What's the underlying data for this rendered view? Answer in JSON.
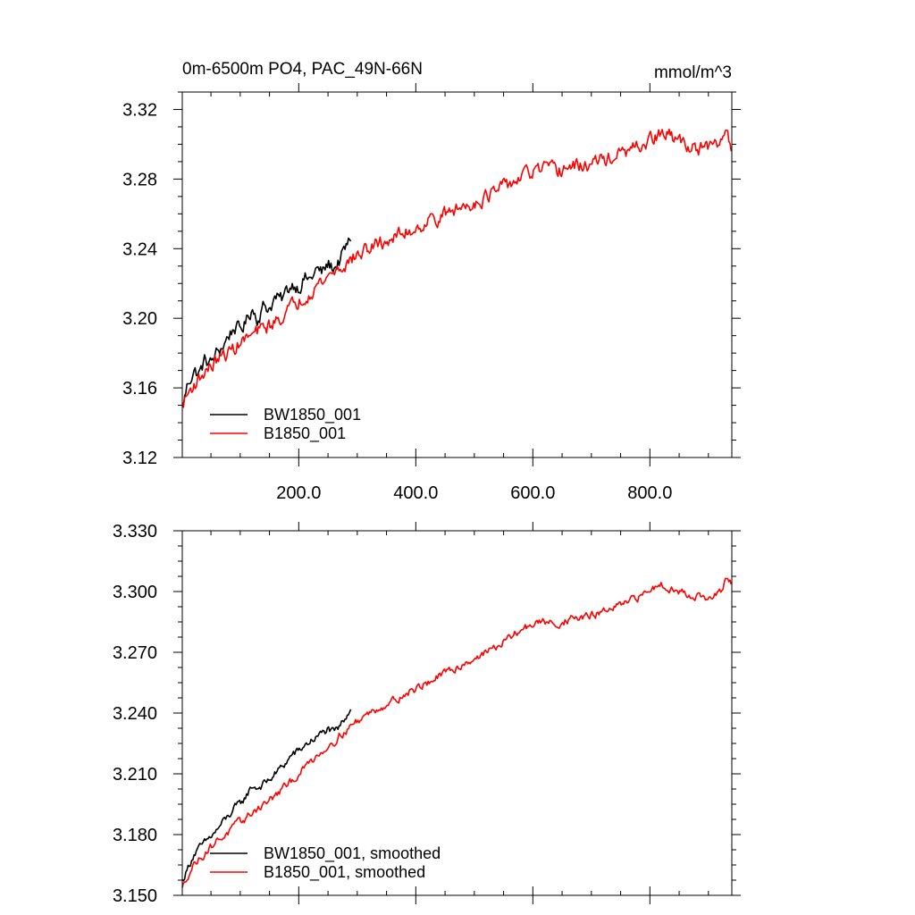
{
  "figure": {
    "title_left": "0m-6500m PO4, PAC_49N-66N",
    "title_right": "mmol/m^3"
  },
  "chart_data": [
    {
      "type": "line",
      "title": "0m-6500m PO4, PAC_49N-66N",
      "units": "mmol/m^3",
      "xlim": [
        1,
        940
      ],
      "ylim": [
        3.12,
        3.33
      ],
      "x_ticks": [
        200,
        400,
        600,
        800
      ],
      "x_tick_labels": [
        "200.0",
        "400.0",
        "600.0",
        "800.0"
      ],
      "y_ticks": [
        3.12,
        3.16,
        3.2,
        3.24,
        3.28,
        3.32
      ],
      "y_tick_labels": [
        "3.12",
        "3.16",
        "3.20",
        "3.24",
        "3.28",
        "3.32"
      ],
      "grid": false,
      "legend_position": "bottom-left",
      "series": [
        {
          "name": "BW1850_001",
          "color": "#000000",
          "x": [
            1,
            10,
            20,
            30,
            40,
            50,
            60,
            70,
            80,
            90,
            100,
            110,
            120,
            130,
            140,
            150,
            160,
            170,
            180,
            190,
            200,
            210,
            220,
            230,
            240,
            250,
            260,
            270,
            280,
            290
          ],
          "y": [
            3.148,
            3.162,
            3.17,
            3.168,
            3.176,
            3.174,
            3.18,
            3.184,
            3.19,
            3.195,
            3.193,
            3.198,
            3.206,
            3.2,
            3.207,
            3.206,
            3.212,
            3.21,
            3.216,
            3.22,
            3.218,
            3.223,
            3.222,
            3.228,
            3.226,
            3.231,
            3.229,
            3.233,
            3.24,
            3.246
          ]
        },
        {
          "name": "B1850_001",
          "color": "#ff0000",
          "x": [
            1,
            10,
            20,
            30,
            40,
            50,
            60,
            70,
            80,
            90,
            100,
            110,
            120,
            130,
            140,
            150,
            160,
            170,
            180,
            190,
            200,
            210,
            220,
            230,
            240,
            250,
            260,
            270,
            280,
            290,
            300,
            320,
            340,
            360,
            380,
            400,
            420,
            440,
            460,
            480,
            500,
            520,
            540,
            560,
            580,
            600,
            620,
            640,
            660,
            680,
            700,
            720,
            740,
            760,
            780,
            800,
            820,
            840,
            860,
            880,
            900,
            920,
            930,
            940
          ],
          "y": [
            3.15,
            3.156,
            3.162,
            3.165,
            3.17,
            3.172,
            3.176,
            3.178,
            3.18,
            3.183,
            3.186,
            3.188,
            3.19,
            3.192,
            3.194,
            3.196,
            3.198,
            3.201,
            3.204,
            3.207,
            3.21,
            3.213,
            3.216,
            3.219,
            3.221,
            3.224,
            3.227,
            3.229,
            3.231,
            3.234,
            3.236,
            3.24,
            3.243,
            3.246,
            3.249,
            3.252,
            3.256,
            3.258,
            3.261,
            3.264,
            3.267,
            3.27,
            3.273,
            3.277,
            3.281,
            3.284,
            3.286,
            3.284,
            3.287,
            3.287,
            3.289,
            3.291,
            3.293,
            3.295,
            3.298,
            3.302,
            3.306,
            3.304,
            3.3,
            3.298,
            3.297,
            3.3,
            3.309,
            3.298
          ]
        }
      ]
    },
    {
      "type": "line",
      "xlim": [
        1,
        940
      ],
      "ylim": [
        3.15,
        3.33
      ],
      "x_ticks": [
        200,
        400,
        600,
        800
      ],
      "y_ticks": [
        3.15,
        3.18,
        3.21,
        3.24,
        3.27,
        3.3,
        3.33
      ],
      "y_tick_labels": [
        "3.150",
        "3.180",
        "3.210",
        "3.240",
        "3.270",
        "3.300",
        "3.330"
      ],
      "grid": false,
      "legend_position": "bottom-left",
      "series": [
        {
          "name": "BW1850_001, smoothed",
          "color": "#000000",
          "x": [
            1,
            10,
            20,
            30,
            40,
            50,
            60,
            70,
            80,
            90,
            100,
            110,
            120,
            130,
            140,
            150,
            160,
            170,
            180,
            190,
            200,
            210,
            220,
            230,
            240,
            250,
            260,
            270,
            280,
            290
          ],
          "y": [
            3.157,
            3.163,
            3.17,
            3.173,
            3.176,
            3.179,
            3.182,
            3.186,
            3.189,
            3.193,
            3.195,
            3.199,
            3.204,
            3.203,
            3.205,
            3.207,
            3.21,
            3.213,
            3.216,
            3.22,
            3.221,
            3.224,
            3.226,
            3.228,
            3.23,
            3.232,
            3.23,
            3.233,
            3.238,
            3.244
          ]
        },
        {
          "name": "B1850_001, smoothed",
          "color": "#ff0000",
          "x": [
            1,
            10,
            20,
            30,
            40,
            50,
            60,
            70,
            80,
            90,
            100,
            110,
            120,
            130,
            140,
            150,
            160,
            170,
            180,
            190,
            200,
            210,
            220,
            230,
            240,
            250,
            260,
            270,
            280,
            290,
            300,
            320,
            340,
            360,
            380,
            400,
            420,
            440,
            460,
            480,
            500,
            520,
            540,
            560,
            580,
            600,
            620,
            640,
            660,
            680,
            700,
            720,
            740,
            760,
            780,
            800,
            820,
            840,
            860,
            880,
            900,
            920,
            930,
            940
          ],
          "y": [
            3.153,
            3.16,
            3.165,
            3.168,
            3.171,
            3.174,
            3.177,
            3.179,
            3.181,
            3.184,
            3.186,
            3.188,
            3.191,
            3.193,
            3.195,
            3.197,
            3.199,
            3.202,
            3.204,
            3.207,
            3.21,
            3.213,
            3.216,
            3.219,
            3.221,
            3.224,
            3.226,
            3.229,
            3.231,
            3.234,
            3.236,
            3.24,
            3.243,
            3.246,
            3.249,
            3.252,
            3.255,
            3.258,
            3.261,
            3.264,
            3.267,
            3.27,
            3.273,
            3.277,
            3.281,
            3.284,
            3.285,
            3.284,
            3.286,
            3.287,
            3.288,
            3.29,
            3.292,
            3.294,
            3.297,
            3.301,
            3.304,
            3.301,
            3.299,
            3.298,
            3.296,
            3.299,
            3.306,
            3.303
          ]
        }
      ]
    }
  ]
}
